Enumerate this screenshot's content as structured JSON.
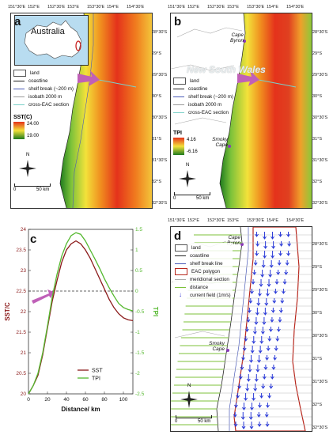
{
  "panels": {
    "a": {
      "letter": "a"
    },
    "b": {
      "letter": "b"
    },
    "c": {
      "letter": "c"
    },
    "d": {
      "letter": "d"
    }
  },
  "top_lon_ticks": [
    "151°30'E",
    "152°E",
    "152°30'E",
    "153°E",
    "153°30'E",
    "154°E",
    "154°30'E"
  ],
  "d_lon_ticks": [
    "151°30'E",
    "152°E",
    "152°30'E",
    "153°E",
    "153°30'E",
    "154°E",
    "154°30'E"
  ],
  "lat_ticks": [
    "28°30'S",
    "29°S",
    "29°30'S",
    "30°S",
    "30°30'S",
    "31°S",
    "31°30'S",
    "32°S",
    "32°30'S"
  ],
  "panel_a": {
    "inset_label": "Australia",
    "legend": [
      "land",
      "coastline",
      "shelf break (~200 m)",
      "isobath 2000 m",
      "cross-EAC section"
    ],
    "colorbar_title": "SST(C)",
    "colorbar_max": "24.00",
    "colorbar_min": "19.00",
    "north": "N",
    "scale_zero": "0",
    "scale_end": "50 km"
  },
  "panel_b": {
    "region_label": "New South Wales",
    "legend": [
      "land",
      "coastline",
      "shelf break (~200 m)",
      "isobath 2000 m",
      "cross-EAC section"
    ],
    "colorbar_title": "TPI",
    "colorbar_max": "4.16",
    "colorbar_min": "-6.16",
    "north": "N",
    "scale_zero": "0",
    "scale_end": "50 km",
    "place_1": "Cape Byron",
    "place_2": "Smoky Cape"
  },
  "panel_d": {
    "legend": [
      "land",
      "coastline",
      "shelf break line",
      "EAC polygon",
      "meridional section",
      "distance",
      "current field (1m/s)"
    ],
    "north": "N",
    "scale_zero": "0",
    "scale_end": "50 km",
    "place_1": "Cape Byron",
    "place_2": "Smoky Cape"
  },
  "chart_data": {
    "type": "line",
    "xlabel": "Distance/ km",
    "ylabel": "SST/C",
    "y2label": "TPI",
    "xlim": [
      0,
      110
    ],
    "ylim": [
      20,
      24
    ],
    "y2lim": [
      -2.5,
      1.5
    ],
    "xticks": [
      0,
      20,
      40,
      60,
      80,
      100
    ],
    "yticks": [
      20,
      20.5,
      21,
      21.5,
      22,
      22.5,
      23,
      23.5,
      24
    ],
    "y2ticks": [
      -2.5,
      -2,
      -1.5,
      -1,
      -0.5,
      0,
      0.5,
      1,
      1.5
    ],
    "threshold_y2": 0,
    "series": [
      {
        "name": "SST",
        "color": "#8b1a1a",
        "axis": "left",
        "x": [
          0,
          5,
          10,
          15,
          20,
          25,
          30,
          35,
          40,
          45,
          50,
          55,
          60,
          65,
          70,
          75,
          80,
          85,
          90,
          95,
          100,
          105,
          110
        ],
        "values": [
          20.0,
          20.2,
          20.45,
          20.95,
          21.6,
          22.25,
          22.75,
          23.2,
          23.5,
          23.65,
          23.72,
          23.65,
          23.5,
          23.3,
          23.05,
          22.8,
          22.55,
          22.3,
          22.1,
          21.95,
          21.85,
          21.8,
          21.78
        ]
      },
      {
        "name": "TPI",
        "color": "#55b82f",
        "axis": "right",
        "x": [
          0,
          5,
          10,
          15,
          20,
          25,
          30,
          35,
          40,
          45,
          50,
          55,
          60,
          65,
          70,
          75,
          80,
          85,
          90,
          95,
          100,
          105,
          110
        ],
        "values": [
          -2.5,
          -2.3,
          -2.0,
          -1.5,
          -0.85,
          -0.15,
          0.4,
          0.85,
          1.15,
          1.35,
          1.42,
          1.38,
          1.22,
          1.0,
          0.78,
          0.55,
          0.3,
          0.08,
          -0.12,
          -0.3,
          -0.4,
          -0.45,
          -0.48
        ]
      }
    ]
  }
}
